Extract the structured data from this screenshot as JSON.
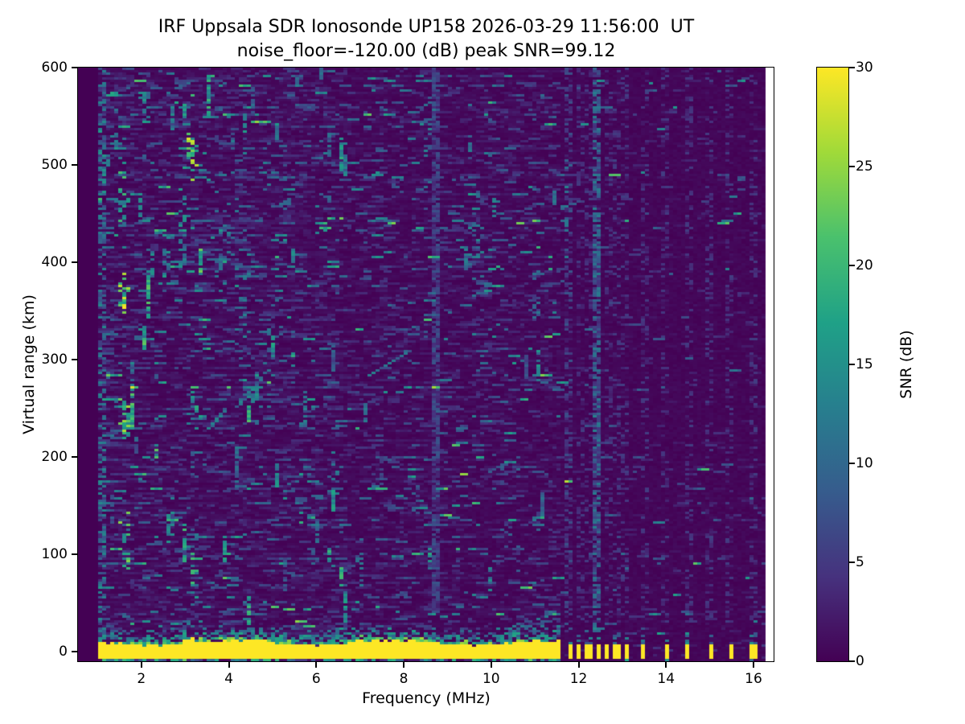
{
  "chart_data": {
    "type": "heatmap",
    "title": "IRF Uppsala SDR Ionosonde UP158 2026-03-29 11:56:00  UT",
    "subtitle": "noise_floor=-120.00 (dB) peak SNR=99.12",
    "station": "UP158",
    "timestamp_ut": "2026-03-29 11:56:00 UT",
    "noise_floor_db": -120.0,
    "peak_snr_db": 99.12,
    "xlabel": "Frequency (MHz)",
    "ylabel": "Virtual range (km)",
    "xlim": [
      0.55,
      16.46
    ],
    "ylim": [
      -10,
      600
    ],
    "xticks": [
      2,
      4,
      6,
      8,
      10,
      12,
      14,
      16
    ],
    "yticks": [
      0,
      100,
      200,
      300,
      400,
      500,
      600
    ],
    "grid": false,
    "colorbar": {
      "label": "SNR (dB)",
      "min": 0,
      "max": 30,
      "ticks": [
        0,
        5,
        10,
        15,
        20,
        25,
        30
      ],
      "colormap": "viridis",
      "stops": [
        "#440154",
        "#46327e",
        "#365c8d",
        "#277f8e",
        "#1fa187",
        "#4ac16d",
        "#a0da39",
        "#fde725"
      ]
    },
    "features": {
      "seed": 20260329,
      "data_f_end": 16.32,
      "sweep": {
        "f_start": 1.0,
        "f_end": 11.62,
        "band_km": [
          -6.8,
          9
        ],
        "snr_db": 30
      },
      "band_bumps": [
        [
          3.1,
          4
        ],
        [
          4.75,
          2.5
        ],
        [
          7.0,
          2
        ]
      ],
      "tx_dashes": [
        11.79,
        12.01,
        12.23,
        12.43,
        12.65,
        12.87,
        13.09,
        13.5,
        14.0,
        14.5,
        15.0,
        15.47,
        16.0
      ],
      "dash_column": {
        "hw": 0.045,
        "p": 0.26,
        "lo": 1.5,
        "hi": 5.5,
        "km": [
          30,
          600
        ]
      },
      "columns": [
        [
          8.75,
          0.05,
          0.82,
          2.5,
          8,
          40,
          600
        ],
        [
          12.43,
          0.07,
          0.72,
          3,
          13,
          18,
          600
        ],
        [
          1.08,
          0.07,
          0.5,
          3,
          14,
          15,
          600
        ],
        [
          11.79,
          0.05,
          0.3,
          2,
          8,
          20,
          600
        ]
      ],
      "hotspots": [
        [
          1.6,
          362,
          0.05,
          13,
          26,
          0.85
        ],
        [
          1.55,
          468,
          0.06,
          20,
          18,
          0.6
        ],
        [
          1.12,
          500,
          0.06,
          28,
          14,
          0.5
        ],
        [
          1.65,
          240,
          0.05,
          14,
          22,
          0.7
        ],
        [
          1.63,
          115,
          0.05,
          16,
          24,
          0.7
        ],
        [
          2.1,
          558,
          0.06,
          14,
          14,
          0.5
        ],
        [
          2.55,
          400,
          0.05,
          14,
          14,
          0.5
        ],
        [
          3.15,
          512,
          0.06,
          13,
          24,
          0.85
        ],
        [
          3.32,
          498,
          0.05,
          12,
          17,
          0.6
        ],
        [
          2.95,
          435,
          0.07,
          16,
          15,
          0.55
        ],
        [
          3.2,
          252,
          0.06,
          15,
          18,
          0.6
        ],
        [
          3.17,
          75,
          0.05,
          14,
          18,
          0.6
        ],
        [
          2.62,
          130,
          0.06,
          16,
          13,
          0.5
        ],
        [
          3.95,
          420,
          0.12,
          28,
          11,
          0.4
        ],
        [
          4.35,
          345,
          0.1,
          22,
          11,
          0.4
        ],
        [
          4.62,
          270,
          0.07,
          16,
          13,
          0.5
        ],
        [
          5.05,
          325,
          0.1,
          22,
          10,
          0.35
        ],
        [
          5.3,
          455,
          0.07,
          16,
          13,
          0.45
        ],
        [
          4.85,
          505,
          0.07,
          20,
          12,
          0.4
        ],
        [
          6.4,
          175,
          0.07,
          18,
          11,
          0.4
        ],
        [
          7.0,
          92,
          0.06,
          14,
          11,
          0.4
        ],
        [
          8.55,
          532,
          0.05,
          26,
          12,
          0.5
        ],
        [
          9.65,
          420,
          0.08,
          26,
          12,
          0.5
        ],
        [
          9.8,
          300,
          0.06,
          16,
          10,
          0.4
        ],
        [
          8.3,
          160,
          0.06,
          16,
          10,
          0.4
        ],
        [
          10.4,
          120,
          0.06,
          14,
          10,
          0.35
        ],
        [
          11.05,
          360,
          0.06,
          18,
          10,
          0.4
        ],
        [
          11.7,
          450,
          0.05,
          25,
          11,
          0.45
        ]
      ],
      "streak_groups": [
        {
          "count": 48,
          "f": [
            1.02,
            6.6
          ],
          "km": [
            25,
            585
          ],
          "len": [
            8,
            40
          ],
          "amp": [
            8,
            21
          ]
        },
        {
          "count": 14,
          "f": [
            6.6,
            11.5
          ],
          "km": [
            25,
            560
          ],
          "len": [
            8,
            30
          ],
          "amp": [
            7,
            16
          ]
        }
      ],
      "diagonals": [
        [
          4.2,
          252,
          4.95,
          292
        ],
        [
          7.25,
          285,
          8.1,
          308
        ],
        [
          3.55,
          228,
          3.9,
          248
        ]
      ]
    }
  }
}
